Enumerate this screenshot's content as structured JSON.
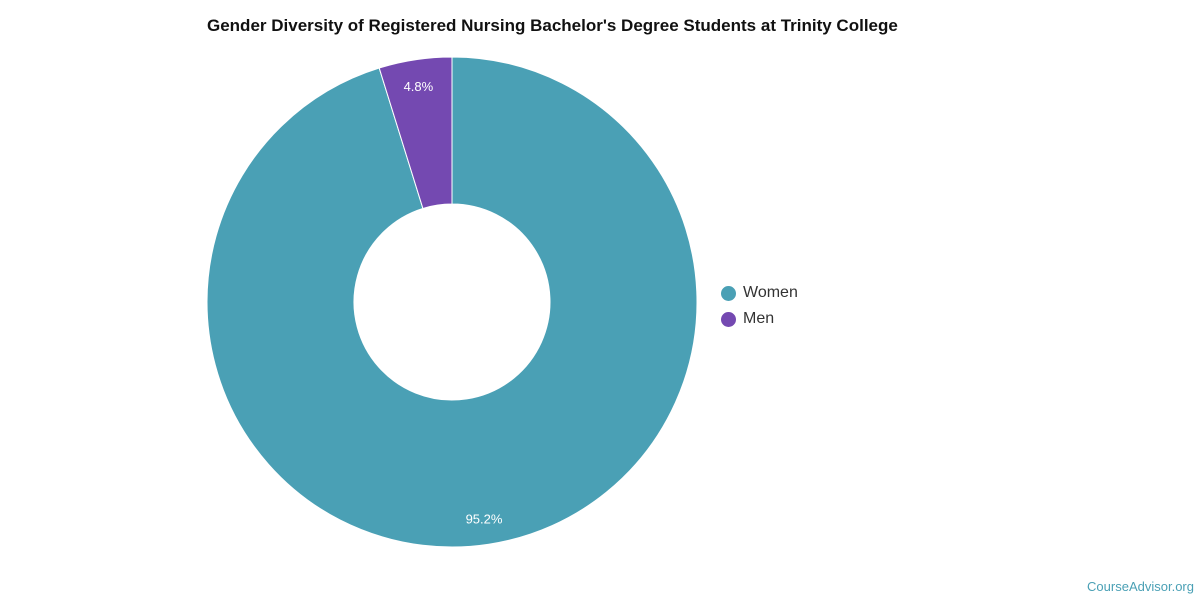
{
  "chart_data": {
    "type": "pie",
    "title": "Gender Diversity of Registered Nursing Bachelor's Degree Students at Trinity College",
    "donut": true,
    "series": [
      {
        "name": "Women",
        "value": 95.2,
        "label": "95.2%",
        "color": "#4aa0b5"
      },
      {
        "name": "Men",
        "value": 4.8,
        "label": "4.8%",
        "color": "#7449b1"
      }
    ],
    "legend_position": "right"
  },
  "legend": {
    "items": [
      {
        "label": "Women",
        "color": "#4aa0b5"
      },
      {
        "label": "Men",
        "color": "#7449b1"
      }
    ]
  },
  "watermark": "CourseAdvisor.org"
}
